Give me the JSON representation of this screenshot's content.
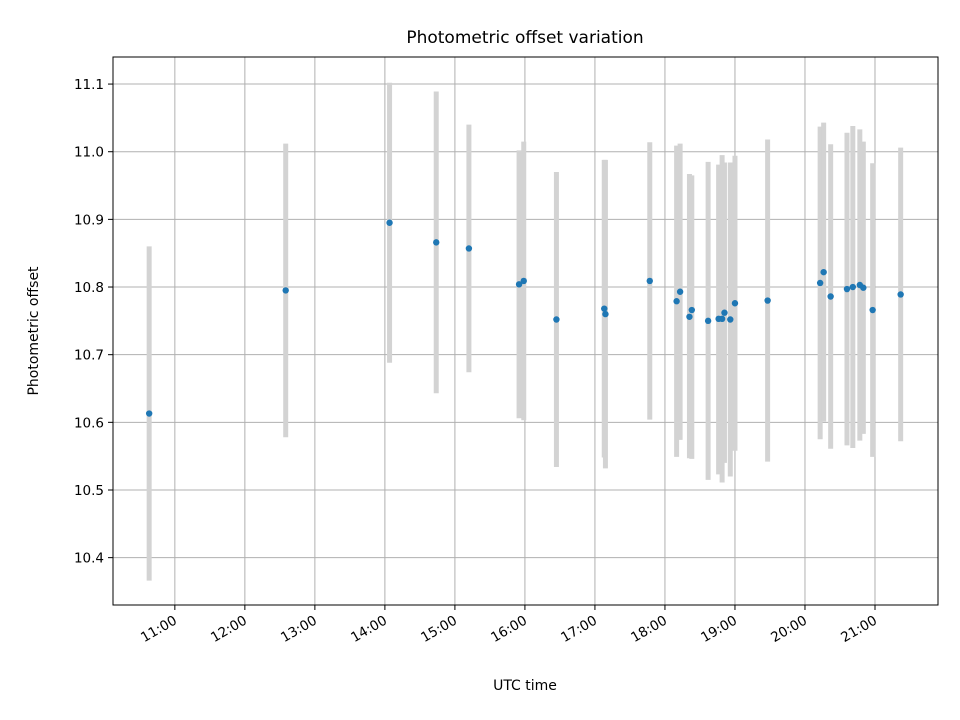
{
  "chart_data": {
    "type": "scatter",
    "title": "Photometric offset variation",
    "xlabel": "UTC time",
    "ylabel": "Photometric offset",
    "xlim": [
      "10:07",
      "21:54"
    ],
    "ylim": [
      10.33,
      11.14
    ],
    "grid": true,
    "x_ticks": [
      "11:00",
      "12:00",
      "13:00",
      "14:00",
      "15:00",
      "16:00",
      "17:00",
      "18:00",
      "19:00",
      "20:00",
      "21:00"
    ],
    "y_ticks": [
      10.4,
      10.5,
      10.6,
      10.7,
      10.8,
      10.9,
      11.0,
      11.1
    ],
    "y_tick_labels": [
      "10.4",
      "10.5",
      "10.6",
      "10.7",
      "10.8",
      "10.9",
      "11.0",
      "11.1"
    ],
    "colors": {
      "point": "#1f77b4",
      "errorbar": "#d3d3d3"
    },
    "series": [
      {
        "points": [
          {
            "x": "10:38",
            "y": 10.613,
            "low": 10.366,
            "high": 10.86
          },
          {
            "x": "12:35",
            "y": 10.795,
            "low": 10.578,
            "high": 11.012
          },
          {
            "x": "14:04",
            "y": 10.895,
            "low": 10.688,
            "high": 11.102
          },
          {
            "x": "14:44",
            "y": 10.866,
            "low": 10.643,
            "high": 11.089
          },
          {
            "x": "15:12",
            "y": 10.857,
            "low": 10.674,
            "high": 11.04
          },
          {
            "x": "15:55",
            "y": 10.804,
            "low": 10.606,
            "high": 11.002
          },
          {
            "x": "15:59",
            "y": 10.809,
            "low": 10.603,
            "high": 11.015
          },
          {
            "x": "16:27",
            "y": 10.752,
            "low": 10.534,
            "high": 10.97
          },
          {
            "x": "17:08",
            "y": 10.768,
            "low": 10.548,
            "high": 10.988
          },
          {
            "x": "17:09",
            "y": 10.76,
            "low": 10.532,
            "high": 10.988
          },
          {
            "x": "17:47",
            "y": 10.809,
            "low": 10.604,
            "high": 11.014
          },
          {
            "x": "18:10",
            "y": 10.779,
            "low": 10.549,
            "high": 11.009
          },
          {
            "x": "18:13",
            "y": 10.793,
            "low": 10.574,
            "high": 11.012
          },
          {
            "x": "18:21",
            "y": 10.756,
            "low": 10.547,
            "high": 10.967
          },
          {
            "x": "18:23",
            "y": 10.766,
            "low": 10.546,
            "high": 10.965
          },
          {
            "x": "18:37",
            "y": 10.75,
            "low": 10.515,
            "high": 10.985
          },
          {
            "x": "18:46",
            "y": 10.753,
            "low": 10.523,
            "high": 10.981
          },
          {
            "x": "18:49",
            "y": 10.753,
            "low": 10.511,
            "high": 10.995
          },
          {
            "x": "18:51",
            "y": 10.762,
            "low": 10.54,
            "high": 10.984
          },
          {
            "x": "18:56",
            "y": 10.752,
            "low": 10.52,
            "high": 10.984
          },
          {
            "x": "19:00",
            "y": 10.776,
            "low": 10.558,
            "high": 10.994
          },
          {
            "x": "19:28",
            "y": 10.78,
            "low": 10.542,
            "high": 11.018
          },
          {
            "x": "20:13",
            "y": 10.806,
            "low": 10.575,
            "high": 11.037
          },
          {
            "x": "20:16",
            "y": 10.822,
            "low": 10.601,
            "high": 11.043
          },
          {
            "x": "20:22",
            "y": 10.786,
            "low": 10.561,
            "high": 11.011
          },
          {
            "x": "20:36",
            "y": 10.797,
            "low": 10.566,
            "high": 11.028
          },
          {
            "x": "20:41",
            "y": 10.8,
            "low": 10.562,
            "high": 11.038
          },
          {
            "x": "20:47",
            "y": 10.803,
            "low": 10.573,
            "high": 11.033
          },
          {
            "x": "20:50",
            "y": 10.799,
            "low": 10.583,
            "high": 11.015
          },
          {
            "x": "20:58",
            "y": 10.766,
            "low": 10.549,
            "high": 10.983
          },
          {
            "x": "21:22",
            "y": 10.789,
            "low": 10.572,
            "high": 11.006
          }
        ]
      }
    ]
  }
}
